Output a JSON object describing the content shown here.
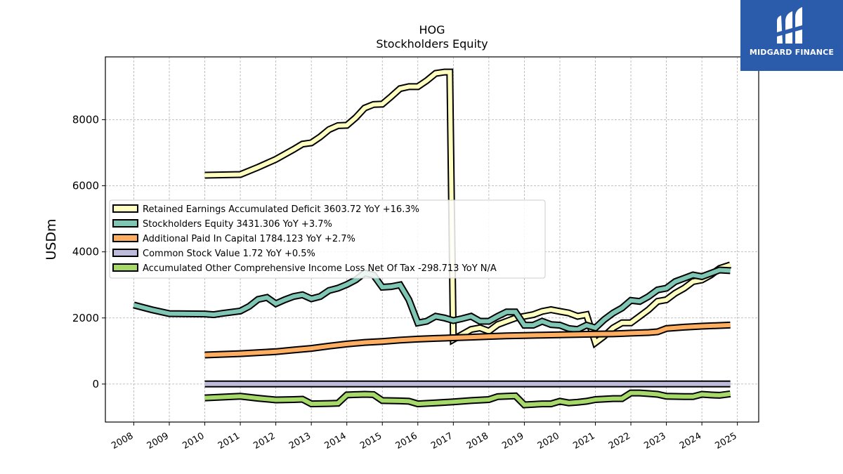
{
  "brand": {
    "name": "MIDGARD FINANCE",
    "bg_color": "#2b5cab"
  },
  "chart_data": {
    "type": "line",
    "title": "HOG",
    "subtitle": "Stockholders  Equity",
    "ylabel": "USDm",
    "xlabel": "",
    "ylim": [
      -1150,
      9900
    ],
    "xlim": [
      2007.2,
      2025.6
    ],
    "yticks": [
      0,
      2000,
      4000,
      6000,
      8000
    ],
    "xticks": [
      "2008",
      "2009",
      "2010",
      "2011",
      "2012",
      "2013",
      "2014",
      "2015",
      "2016",
      "2017",
      "2018",
      "2019",
      "2020",
      "2021",
      "2022",
      "2023",
      "2024",
      "2025"
    ],
    "grid": true,
    "legend_position": "center-left",
    "series": [
      {
        "name": "Retained Earnings Accumulated Deficit",
        "legend": "Retained Earnings Accumulated Deficit  3603.72 YoY +16.3%",
        "color": "#ffffbf",
        "points": [
          [
            2010.0,
            6320
          ],
          [
            2011.0,
            6340
          ],
          [
            2011.5,
            6560
          ],
          [
            2012.0,
            6800
          ],
          [
            2012.5,
            7100
          ],
          [
            2012.75,
            7260
          ],
          [
            2013.0,
            7300
          ],
          [
            2013.25,
            7480
          ],
          [
            2013.5,
            7700
          ],
          [
            2013.75,
            7820
          ],
          [
            2014.0,
            7830
          ],
          [
            2014.25,
            8060
          ],
          [
            2014.5,
            8350
          ],
          [
            2014.75,
            8460
          ],
          [
            2015.0,
            8470
          ],
          [
            2015.25,
            8700
          ],
          [
            2015.5,
            8940
          ],
          [
            2015.75,
            9000
          ],
          [
            2016.0,
            9000
          ],
          [
            2016.25,
            9180
          ],
          [
            2016.5,
            9400
          ],
          [
            2016.75,
            9440
          ],
          [
            2016.9,
            9440
          ],
          [
            2017.0,
            1350
          ],
          [
            2017.25,
            1500
          ],
          [
            2017.5,
            1650
          ],
          [
            2017.75,
            1700
          ],
          [
            2018.0,
            1600
          ],
          [
            2018.25,
            1800
          ],
          [
            2018.5,
            1900
          ],
          [
            2018.75,
            2000
          ],
          [
            2019.0,
            2050
          ],
          [
            2019.25,
            2100
          ],
          [
            2019.5,
            2200
          ],
          [
            2019.75,
            2250
          ],
          [
            2020.0,
            2200
          ],
          [
            2020.25,
            2150
          ],
          [
            2020.5,
            2050
          ],
          [
            2020.75,
            2100
          ],
          [
            2021.0,
            1250
          ],
          [
            2021.25,
            1450
          ],
          [
            2021.5,
            1700
          ],
          [
            2021.75,
            1850
          ],
          [
            2022.0,
            1850
          ],
          [
            2022.25,
            2050
          ],
          [
            2022.5,
            2250
          ],
          [
            2022.75,
            2500
          ],
          [
            2023.0,
            2550
          ],
          [
            2023.25,
            2750
          ],
          [
            2023.5,
            2900
          ],
          [
            2023.75,
            3100
          ],
          [
            2024.0,
            3150
          ],
          [
            2024.25,
            3300
          ],
          [
            2024.5,
            3500
          ],
          [
            2024.8,
            3603.72
          ]
        ]
      },
      {
        "name": "Stockholders Equity",
        "legend": "Stockholders Equity  3431.306 YoY +3.7%",
        "color": "#7fc7b4",
        "points": [
          [
            2008.0,
            2390
          ],
          [
            2008.5,
            2250
          ],
          [
            2009.0,
            2130
          ],
          [
            2010.0,
            2120
          ],
          [
            2010.25,
            2100
          ],
          [
            2010.5,
            2140
          ],
          [
            2011.0,
            2210
          ],
          [
            2011.25,
            2350
          ],
          [
            2011.5,
            2560
          ],
          [
            2011.75,
            2620
          ],
          [
            2012.0,
            2430
          ],
          [
            2012.25,
            2550
          ],
          [
            2012.5,
            2650
          ],
          [
            2012.75,
            2700
          ],
          [
            2013.0,
            2580
          ],
          [
            2013.25,
            2650
          ],
          [
            2013.5,
            2830
          ],
          [
            2013.75,
            2900
          ],
          [
            2014.0,
            3010
          ],
          [
            2014.25,
            3150
          ],
          [
            2014.5,
            3360
          ],
          [
            2014.75,
            3300
          ],
          [
            2015.0,
            2930
          ],
          [
            2015.25,
            2950
          ],
          [
            2015.5,
            3000
          ],
          [
            2015.75,
            2550
          ],
          [
            2016.0,
            1850
          ],
          [
            2016.25,
            1900
          ],
          [
            2016.5,
            2050
          ],
          [
            2016.75,
            2000
          ],
          [
            2017.0,
            1920
          ],
          [
            2017.25,
            1980
          ],
          [
            2017.5,
            2050
          ],
          [
            2017.75,
            1900
          ],
          [
            2018.0,
            1900
          ],
          [
            2018.25,
            2050
          ],
          [
            2018.5,
            2180
          ],
          [
            2018.75,
            2180
          ],
          [
            2019.0,
            1780
          ],
          [
            2019.25,
            1780
          ],
          [
            2019.5,
            1900
          ],
          [
            2019.75,
            1800
          ],
          [
            2020.0,
            1780
          ],
          [
            2020.25,
            1680
          ],
          [
            2020.5,
            1650
          ],
          [
            2020.75,
            1780
          ],
          [
            2021.0,
            1700
          ],
          [
            2021.25,
            1950
          ],
          [
            2021.5,
            2150
          ],
          [
            2021.75,
            2300
          ],
          [
            2022.0,
            2530
          ],
          [
            2022.25,
            2500
          ],
          [
            2022.5,
            2650
          ],
          [
            2022.75,
            2850
          ],
          [
            2023.0,
            2900
          ],
          [
            2023.25,
            3100
          ],
          [
            2023.5,
            3200
          ],
          [
            2023.75,
            3300
          ],
          [
            2024.0,
            3250
          ],
          [
            2024.25,
            3350
          ],
          [
            2024.5,
            3450
          ],
          [
            2024.8,
            3431.306
          ]
        ]
      },
      {
        "name": "Additional Paid In Capital",
        "legend": "Additional Paid In Capital  1784.123 YoY +2.7%",
        "color": "#fdae61",
        "points": [
          [
            2010.0,
            880
          ],
          [
            2011.0,
            920
          ],
          [
            2012.0,
            980
          ],
          [
            2012.5,
            1030
          ],
          [
            2013.0,
            1080
          ],
          [
            2013.5,
            1150
          ],
          [
            2014.0,
            1210
          ],
          [
            2014.5,
            1260
          ],
          [
            2015.0,
            1290
          ],
          [
            2015.5,
            1330
          ],
          [
            2016.0,
            1360
          ],
          [
            2016.5,
            1380
          ],
          [
            2017.0,
            1400
          ],
          [
            2017.5,
            1420
          ],
          [
            2018.0,
            1440
          ],
          [
            2018.5,
            1460
          ],
          [
            2019.0,
            1470
          ],
          [
            2019.5,
            1480
          ],
          [
            2020.0,
            1490
          ],
          [
            2020.5,
            1500
          ],
          [
            2021.0,
            1510
          ],
          [
            2021.5,
            1520
          ],
          [
            2022.0,
            1540
          ],
          [
            2022.5,
            1560
          ],
          [
            2022.75,
            1580
          ],
          [
            2023.0,
            1680
          ],
          [
            2023.5,
            1720
          ],
          [
            2024.0,
            1750
          ],
          [
            2024.8,
            1784.123
          ]
        ]
      },
      {
        "name": "Common Stock Value",
        "legend": "Common Stock Value  1.72 YoY +0.5%",
        "color": "#bebada",
        "points": [
          [
            2010.0,
            1.71
          ],
          [
            2024.8,
            1.72
          ]
        ]
      },
      {
        "name": "Accumulated Other Comprehensive Income Loss Net Of Tax",
        "legend": "Accumulated Other Comprehensive Income Loss Net Of Tax  -298.713 YoY N/A",
        "color": "#a6d96a",
        "points": [
          [
            2010.0,
            -420
          ],
          [
            2011.0,
            -370
          ],
          [
            2011.5,
            -430
          ],
          [
            2012.0,
            -480
          ],
          [
            2012.5,
            -470
          ],
          [
            2012.75,
            -460
          ],
          [
            2013.0,
            -600
          ],
          [
            2013.5,
            -590
          ],
          [
            2013.75,
            -580
          ],
          [
            2014.0,
            -330
          ],
          [
            2014.25,
            -320
          ],
          [
            2014.5,
            -310
          ],
          [
            2014.75,
            -320
          ],
          [
            2015.0,
            -500
          ],
          [
            2015.5,
            -510
          ],
          [
            2015.75,
            -520
          ],
          [
            2016.0,
            -600
          ],
          [
            2016.5,
            -570
          ],
          [
            2017.0,
            -540
          ],
          [
            2017.5,
            -500
          ],
          [
            2018.0,
            -470
          ],
          [
            2018.25,
            -380
          ],
          [
            2018.5,
            -370
          ],
          [
            2018.75,
            -360
          ],
          [
            2019.0,
            -630
          ],
          [
            2019.5,
            -600
          ],
          [
            2019.75,
            -600
          ],
          [
            2020.0,
            -520
          ],
          [
            2020.25,
            -570
          ],
          [
            2020.5,
            -550
          ],
          [
            2020.75,
            -520
          ],
          [
            2021.0,
            -470
          ],
          [
            2021.5,
            -440
          ],
          [
            2021.75,
            -440
          ],
          [
            2022.0,
            -270
          ],
          [
            2022.25,
            -270
          ],
          [
            2022.5,
            -290
          ],
          [
            2022.75,
            -310
          ],
          [
            2023.0,
            -370
          ],
          [
            2023.5,
            -380
          ],
          [
            2023.75,
            -380
          ],
          [
            2024.0,
            -310
          ],
          [
            2024.25,
            -330
          ],
          [
            2024.5,
            -340
          ],
          [
            2024.8,
            -298.713
          ]
        ]
      }
    ]
  }
}
